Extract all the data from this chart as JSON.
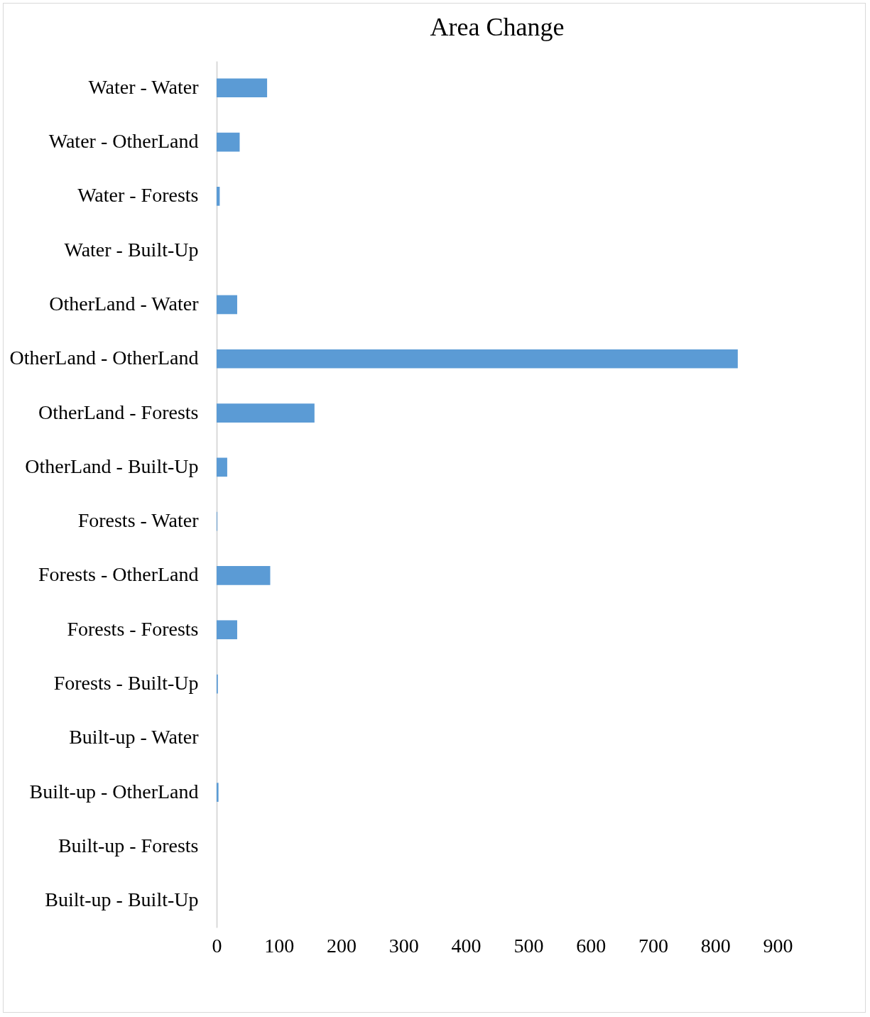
{
  "chart_data": {
    "type": "bar",
    "orientation": "horizontal",
    "title": "Area Change",
    "categories": [
      "Water - Water",
      "Water - OtherLand",
      "Water - Forests",
      "Water - Built-Up",
      "OtherLand - Water",
      "OtherLand - OtherLand",
      "OtherLand - Forests",
      "OtherLand - Built-Up",
      "Forests - Water",
      "Forests - OtherLand",
      "Forests - Forests",
      "Forests - Built-Up",
      "Built-up - Water",
      "Built-up - OtherLand",
      "Built-up - Forests",
      "Built-up - Built-Up"
    ],
    "values": [
      81,
      37,
      5,
      0,
      33,
      836,
      157,
      17,
      1,
      86,
      33,
      2,
      0,
      3,
      0,
      0
    ],
    "color": "#5b9bd5",
    "xlim": [
      0,
      900
    ],
    "xticks": [
      0,
      100,
      200,
      300,
      400,
      500,
      600,
      700,
      800,
      900
    ],
    "grid": false
  }
}
